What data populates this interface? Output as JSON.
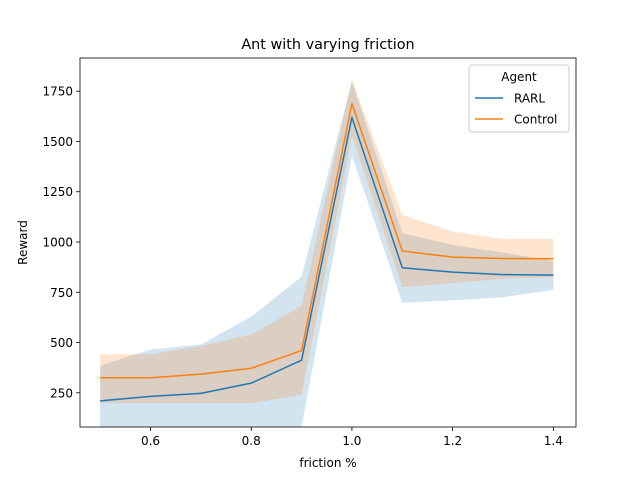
{
  "chart_data": {
    "type": "line",
    "title": "Ant with varying friction",
    "xlabel": "friction %",
    "ylabel": "Reward",
    "xlim": [
      0.46,
      1.445
    ],
    "ylim": [
      80,
      1915
    ],
    "xticks": [
      0.6,
      0.8,
      1.0,
      1.2,
      1.4
    ],
    "xtick_labels": [
      "0.6",
      "0.8",
      "1.0",
      "1.2",
      "1.4"
    ],
    "yticks": [
      250,
      500,
      750,
      1000,
      1250,
      1500,
      1750
    ],
    "ytick_labels": [
      "250",
      "500",
      "750",
      "1000",
      "1250",
      "1500",
      "1750"
    ],
    "grid": false,
    "legend": {
      "title": "Agent",
      "position": "top-right"
    },
    "x": [
      0.5,
      0.6,
      0.7,
      0.8,
      0.9,
      1.0,
      1.1,
      1.2,
      1.3,
      1.4
    ],
    "series": [
      {
        "name": "RARL",
        "color": "#1f77b4",
        "values": [
          210,
          232,
          247,
          298,
          412,
          1620,
          872,
          850,
          838,
          835
        ],
        "lower": [
          80,
          80,
          80,
          80,
          80,
          1430,
          698,
          710,
          725,
          762
        ],
        "upper": [
          385,
          465,
          490,
          628,
          828,
          1800,
          1045,
          985,
          948,
          905
        ]
      },
      {
        "name": "Control",
        "color": "#ff7f0e",
        "values": [
          325,
          325,
          343,
          372,
          460,
          1688,
          955,
          925,
          918,
          917
        ],
        "lower": [
          200,
          198,
          198,
          198,
          240,
          1530,
          775,
          795,
          818,
          825
        ],
        "upper": [
          442,
          442,
          482,
          540,
          683,
          1808,
          1135,
          1052,
          1015,
          1015
        ]
      }
    ]
  }
}
